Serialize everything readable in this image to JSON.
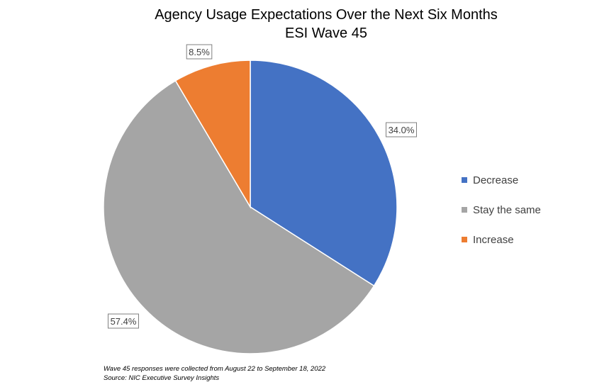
{
  "chart_data": {
    "type": "pie",
    "title": "Agency Usage Expectations Over the Next Six Months",
    "subtitle": "ESI Wave 45",
    "categories": [
      "Decrease",
      "Stay the same",
      "Increase"
    ],
    "values": [
      34.0,
      57.4,
      8.5
    ],
    "data_labels": [
      "34.0%",
      "57.4%",
      "8.5%"
    ],
    "colors": [
      "#4472C4",
      "#A5A5A5",
      "#ED7D31"
    ],
    "start_angle": "12 o'clock",
    "direction": "clockwise",
    "legend_position": "right"
  },
  "footnote": {
    "line1": "Wave 45 responses were collected from August 22 to September 18, 2022",
    "line2": "Source: NIC Executive Survey Insights"
  }
}
